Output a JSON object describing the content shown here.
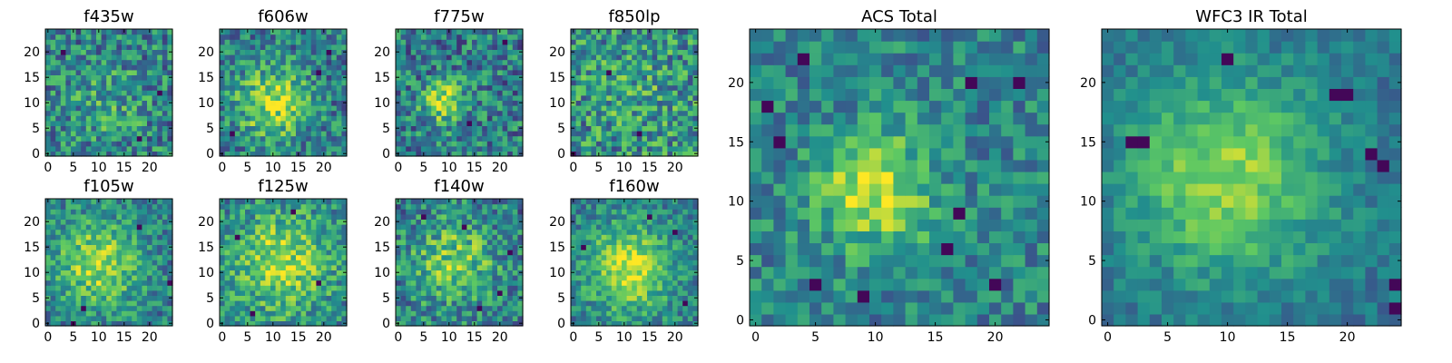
{
  "colormap": "viridis",
  "colors": {
    "viridis": [
      "#440154",
      "#3b528b",
      "#21908d",
      "#5dc863",
      "#fde725"
    ],
    "axes": "#000000",
    "background": "#ffffff"
  },
  "chart_data": [
    {
      "type": "heatmap",
      "title": "f435w",
      "xlim": [
        -0.5,
        24.5
      ],
      "ylim": [
        -0.5,
        24.5
      ],
      "xticks": [
        "0",
        "5",
        "10",
        "15",
        "20"
      ],
      "yticks": [
        "0",
        "5",
        "10",
        "15",
        "20"
      ],
      "grid": false,
      "peak": [
        12,
        10
      ],
      "peak_strength": 0.15,
      "spread": 5,
      "noise": 0.28,
      "baseline": 0.45,
      "dark_pixels": [
        [
          3,
          20
        ],
        [
          18,
          3
        ],
        [
          22,
          12
        ]
      ]
    },
    {
      "type": "heatmap",
      "title": "f606w",
      "xlim": [
        -0.5,
        24.5
      ],
      "ylim": [
        -0.5,
        24.5
      ],
      "xticks": [
        "0",
        "5",
        "10",
        "15",
        "20"
      ],
      "yticks": [
        "0",
        "5",
        "10",
        "15",
        "20"
      ],
      "grid": false,
      "peak": [
        10,
        10
      ],
      "peak_strength": 0.45,
      "spread": 5,
      "noise": 0.26,
      "baseline": 0.42,
      "dark_pixels": [
        [
          19,
          16
        ],
        [
          2,
          4
        ],
        [
          21,
          20
        ]
      ]
    },
    {
      "type": "heatmap",
      "title": "f775w",
      "xlim": [
        -0.5,
        24.5
      ],
      "ylim": [
        -0.5,
        24.5
      ],
      "xticks": [
        "0",
        "5",
        "10",
        "15",
        "20"
      ],
      "yticks": [
        "0",
        "5",
        "10",
        "15",
        "20"
      ],
      "grid": false,
      "peak": [
        9,
        10
      ],
      "peak_strength": 0.45,
      "spread": 3,
      "noise": 0.28,
      "baseline": 0.42,
      "dark_pixels": [
        [
          21,
          22
        ],
        [
          14,
          6
        ]
      ]
    },
    {
      "type": "heatmap",
      "title": "f850lp",
      "xlim": [
        -0.5,
        24.5
      ],
      "ylim": [
        -0.5,
        24.5
      ],
      "xticks": [
        "0",
        "5",
        "10",
        "15",
        "20"
      ],
      "yticks": [
        "0",
        "5",
        "10",
        "15",
        "20"
      ],
      "grid": false,
      "peak": [
        12,
        12
      ],
      "peak_strength": 0.1,
      "spread": 6,
      "noise": 0.3,
      "baseline": 0.5,
      "dark_pixels": [
        [
          0,
          0
        ],
        [
          7,
          16
        ],
        [
          13,
          4
        ]
      ]
    },
    {
      "type": "heatmap",
      "title": "f105w",
      "xlim": [
        -0.5,
        24.5
      ],
      "ylim": [
        -0.5,
        24.5
      ],
      "xticks": [
        "0",
        "5",
        "10",
        "15",
        "20"
      ],
      "yticks": [
        "0",
        "5",
        "10",
        "15",
        "20"
      ],
      "grid": false,
      "peak": [
        10,
        12
      ],
      "peak_strength": 0.45,
      "spread": 6,
      "noise": 0.22,
      "baseline": 0.42,
      "dark_pixels": [
        [
          18,
          19
        ],
        [
          7,
          3
        ],
        [
          24,
          8
        ],
        [
          5,
          0
        ]
      ]
    },
    {
      "type": "heatmap",
      "title": "f125w",
      "xlim": [
        -0.5,
        24.5
      ],
      "ylim": [
        -0.5,
        24.5
      ],
      "xticks": [
        "0",
        "5",
        "10",
        "15",
        "20"
      ],
      "yticks": [
        "0",
        "5",
        "10",
        "15",
        "20"
      ],
      "grid": false,
      "peak": [
        12,
        12
      ],
      "peak_strength": 0.4,
      "spread": 7,
      "noise": 0.24,
      "baseline": 0.45,
      "dark_pixels": [
        [
          3,
          17
        ],
        [
          19,
          8
        ],
        [
          6,
          2
        ],
        [
          14,
          22
        ]
      ]
    },
    {
      "type": "heatmap",
      "title": "f140w",
      "xlim": [
        -0.5,
        24.5
      ],
      "ylim": [
        -0.5,
        24.5
      ],
      "xticks": [
        "0",
        "5",
        "10",
        "15",
        "20"
      ],
      "yticks": [
        "0",
        "5",
        "10",
        "15",
        "20"
      ],
      "grid": false,
      "peak": [
        11,
        12
      ],
      "peak_strength": 0.35,
      "spread": 6,
      "noise": 0.26,
      "baseline": 0.42,
      "dark_pixels": [
        [
          5,
          21
        ],
        [
          13,
          19
        ],
        [
          20,
          6
        ],
        [
          22,
          14
        ],
        [
          16,
          3
        ]
      ]
    },
    {
      "type": "heatmap",
      "title": "f160w",
      "xlim": [
        -0.5,
        24.5
      ],
      "ylim": [
        -0.5,
        24.5
      ],
      "xticks": [
        "0",
        "5",
        "10",
        "15",
        "20"
      ],
      "yticks": [
        "0",
        "5",
        "10",
        "15",
        "20"
      ],
      "grid": false,
      "peak": [
        11,
        11
      ],
      "peak_strength": 0.5,
      "spread": 6,
      "noise": 0.2,
      "baseline": 0.42,
      "dark_pixels": [
        [
          2,
          15
        ],
        [
          20,
          18
        ],
        [
          22,
          4
        ],
        [
          15,
          21
        ]
      ]
    },
    {
      "type": "heatmap",
      "title": "ACS Total",
      "xlim": [
        -0.5,
        24.5
      ],
      "ylim": [
        -0.5,
        24.5
      ],
      "xticks": [
        "0",
        "5",
        "10",
        "15",
        "20"
      ],
      "yticks": [
        "0",
        "5",
        "10",
        "15",
        "20"
      ],
      "grid": false,
      "peak": [
        10,
        11
      ],
      "peak_strength": 0.45,
      "spread": 3.5,
      "noise": 0.2,
      "baseline": 0.45,
      "dark_pixels": [
        [
          1,
          18
        ],
        [
          4,
          22
        ],
        [
          18,
          20
        ],
        [
          17,
          9
        ],
        [
          16,
          6
        ],
        [
          9,
          2
        ],
        [
          5,
          3
        ],
        [
          22,
          20
        ],
        [
          2,
          15
        ],
        [
          20,
          3
        ]
      ]
    },
    {
      "type": "heatmap",
      "title": "WFC3 IR Total",
      "xlim": [
        -0.5,
        24.5
      ],
      "ylim": [
        -0.5,
        24.5
      ],
      "xticks": [
        "0",
        "5",
        "10",
        "15",
        "20"
      ],
      "yticks": [
        "0",
        "5",
        "10",
        "15",
        "20"
      ],
      "grid": false,
      "peak": [
        10,
        12
      ],
      "peak_strength": 0.45,
      "spread": 6,
      "noise": 0.12,
      "baseline": 0.38,
      "dark_pixels": [
        [
          2,
          15
        ],
        [
          3,
          15
        ],
        [
          10,
          22
        ],
        [
          19,
          19
        ],
        [
          20,
          19
        ],
        [
          22,
          14
        ],
        [
          23,
          13
        ],
        [
          24,
          1
        ],
        [
          24,
          3
        ]
      ]
    }
  ]
}
